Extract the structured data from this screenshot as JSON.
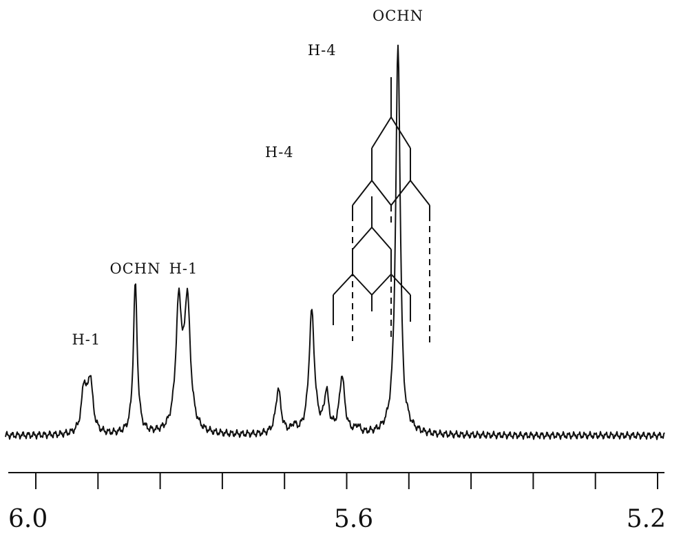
{
  "chart_data": {
    "type": "line",
    "title": "",
    "xlabel": "",
    "ylabel": "",
    "x_axis": {
      "reversed": true,
      "range": [
        6.0,
        5.2
      ],
      "tick_labels": [
        {
          "text": "6.0",
          "value": 6.0
        },
        {
          "text": "5.6",
          "value": 5.6
        },
        {
          "text": "5.2",
          "value": 5.2
        }
      ],
      "minor_ticks": [
        6.0,
        5.92,
        5.84,
        5.76,
        5.68,
        5.6,
        5.52,
        5.44,
        5.36,
        5.28,
        5.2
      ]
    },
    "grid": false,
    "legend": "none",
    "baseline": 0,
    "series": [
      {
        "values_note": "relative intensity (0 = baseline, 1 = tallest peak)",
        "peaks": [
          {
            "x": 5.938,
            "y": 0.115
          },
          {
            "x": 5.93,
            "y": 0.137
          },
          {
            "x": 5.872,
            "y": 0.385
          },
          {
            "x": 5.816,
            "y": 0.32
          },
          {
            "x": 5.805,
            "y": 0.324
          },
          {
            "x": 5.688,
            "y": 0.115
          },
          {
            "x": 5.668,
            "y": 0.018
          },
          {
            "x": 5.645,
            "y": 0.313
          },
          {
            "x": 5.626,
            "y": 0.1
          },
          {
            "x": 5.606,
            "y": 0.146
          },
          {
            "x": 5.586,
            "y": 0.017
          },
          {
            "x": 5.534,
            "y": 1.0
          }
        ]
      }
    ],
    "annotations": [
      {
        "text": "H-1",
        "x": 5.935
      },
      {
        "text": "OCHN",
        "x": 5.872
      },
      {
        "text": "H-1",
        "x": 5.81
      },
      {
        "text": "H-4",
        "x": 5.645
      },
      {
        "text": "H-4",
        "x": 5.66
      },
      {
        "text": "OCHN",
        "x": 5.534
      }
    ]
  }
}
